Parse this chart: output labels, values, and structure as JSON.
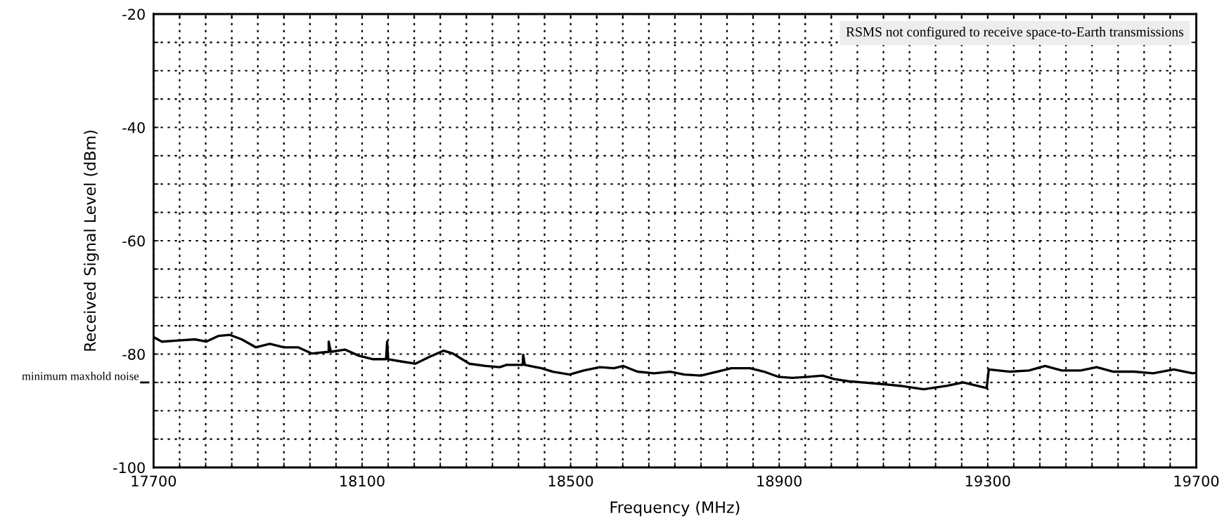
{
  "chart_data": {
    "type": "line",
    "xlabel": "Frequency (MHz)",
    "ylabel": "Received Signal Level (dBm)",
    "x": [
      17700,
      17716,
      17747,
      17779,
      17801,
      17824,
      17846,
      17869,
      17896,
      17923,
      17950,
      17977,
      18004,
      18036,
      18036,
      18040,
      18067,
      18094,
      18121,
      18146,
      18148,
      18150,
      18175,
      18202,
      18229,
      18256,
      18274,
      18306,
      18337,
      18364,
      18377,
      18408,
      18409,
      18412,
      18444,
      18466,
      18498,
      18525,
      18556,
      18583,
      18601,
      18628,
      18660,
      18691,
      18718,
      18750,
      18781,
      18808,
      18844,
      18871,
      18898,
      18925,
      18956,
      18983,
      19006,
      19033,
      19060,
      19087,
      19132,
      19177,
      19222,
      19253,
      19298,
      19302,
      19343,
      19379,
      19410,
      19442,
      19478,
      19509,
      19541,
      19581,
      19617,
      19657,
      19693,
      19700
    ],
    "series": [
      {
        "color": "#000000",
        "values": [
          -77.0,
          -77.8,
          -77.6,
          -77.4,
          -77.8,
          -76.8,
          -76.6,
          -77.4,
          -78.8,
          -78.2,
          -78.8,
          -78.8,
          -79.9,
          -79.6,
          -77.8,
          -79.6,
          -79.2,
          -80.3,
          -80.9,
          -80.9,
          -77.8,
          -80.9,
          -81.3,
          -81.7,
          -80.5,
          -79.4,
          -79.9,
          -81.7,
          -82.1,
          -82.3,
          -81.9,
          -81.9,
          -80.1,
          -81.9,
          -82.5,
          -83.1,
          -83.6,
          -82.9,
          -82.3,
          -82.5,
          -82.1,
          -83.1,
          -83.4,
          -83.1,
          -83.6,
          -83.8,
          -83.1,
          -82.5,
          -82.5,
          -83.1,
          -84.0,
          -84.2,
          -84.0,
          -83.8,
          -84.4,
          -84.8,
          -85.0,
          -85.2,
          -85.6,
          -86.2,
          -85.6,
          -85.0,
          -86.0,
          -82.7,
          -83.1,
          -82.9,
          -82.1,
          -82.9,
          -82.9,
          -82.3,
          -83.1,
          -83.1,
          -83.4,
          -82.7,
          -83.4,
          -83.3
        ]
      }
    ],
    "xlim": [
      17700,
      19700
    ],
    "xticks": [
      17700,
      {
        "value": 17750,
        "label": null
      },
      {
        "value": 17800,
        "label": null
      },
      {
        "value": 17850,
        "label": null
      },
      {
        "value": 17900,
        "label": null
      },
      {
        "value": 17950,
        "label": null
      },
      {
        "value": 18000,
        "label": null
      },
      {
        "value": 18050,
        "label": null
      },
      18100,
      {
        "value": 18150,
        "label": null
      },
      {
        "value": 18200,
        "label": null
      },
      {
        "value": 18250,
        "label": null
      },
      {
        "value": 18300,
        "label": null
      },
      {
        "value": 18350,
        "label": null
      },
      {
        "value": 18400,
        "label": null
      },
      {
        "value": 18450,
        "label": null
      },
      18500,
      {
        "value": 18550,
        "label": null
      },
      {
        "value": 18600,
        "label": null
      },
      {
        "value": 18650,
        "label": null
      },
      {
        "value": 18700,
        "label": null
      },
      {
        "value": 18750,
        "label": null
      },
      {
        "value": 18800,
        "label": null
      },
      {
        "value": 18850,
        "label": null
      },
      18900,
      {
        "value": 18950,
        "label": null
      },
      {
        "value": 19000,
        "label": null
      },
      {
        "value": 19050,
        "label": null
      },
      {
        "value": 19100,
        "label": null
      },
      {
        "value": 19150,
        "label": null
      },
      {
        "value": 19200,
        "label": null
      },
      {
        "value": 19250,
        "label": null
      },
      19300,
      {
        "value": 19350,
        "label": null
      },
      {
        "value": 19400,
        "label": null
      },
      {
        "value": 19450,
        "label": null
      },
      {
        "value": 19500,
        "label": null
      },
      {
        "value": 19550,
        "label": null
      },
      {
        "value": 19600,
        "label": null
      },
      {
        "value": 19650,
        "label": null
      },
      19700
    ],
    "ylim": [
      -100,
      -20
    ],
    "yticks": [
      -100,
      {
        "value": -95,
        "label": null
      },
      {
        "value": -90,
        "label": null
      },
      {
        "value": -85,
        "label": null
      },
      -80,
      {
        "value": -75,
        "label": null
      },
      {
        "value": -70,
        "label": null
      },
      {
        "value": -65,
        "label": null
      },
      -60,
      {
        "value": -55,
        "label": null
      },
      {
        "value": -50,
        "label": null
      },
      {
        "value": -45,
        "label": null
      },
      -40,
      {
        "value": -35,
        "label": null
      },
      {
        "value": -30,
        "label": null
      },
      {
        "value": -25,
        "label": null
      },
      -20
    ],
    "grid": true,
    "line_style": "solid",
    "marker": "none",
    "ref_lines": [
      {
        "axis": "y",
        "value": -85,
        "label": "minimum maxhold noise",
        "color": "#000000"
      }
    ],
    "annotations": [
      "RSMS not configured to receive space-to-Earth transmissions"
    ]
  }
}
